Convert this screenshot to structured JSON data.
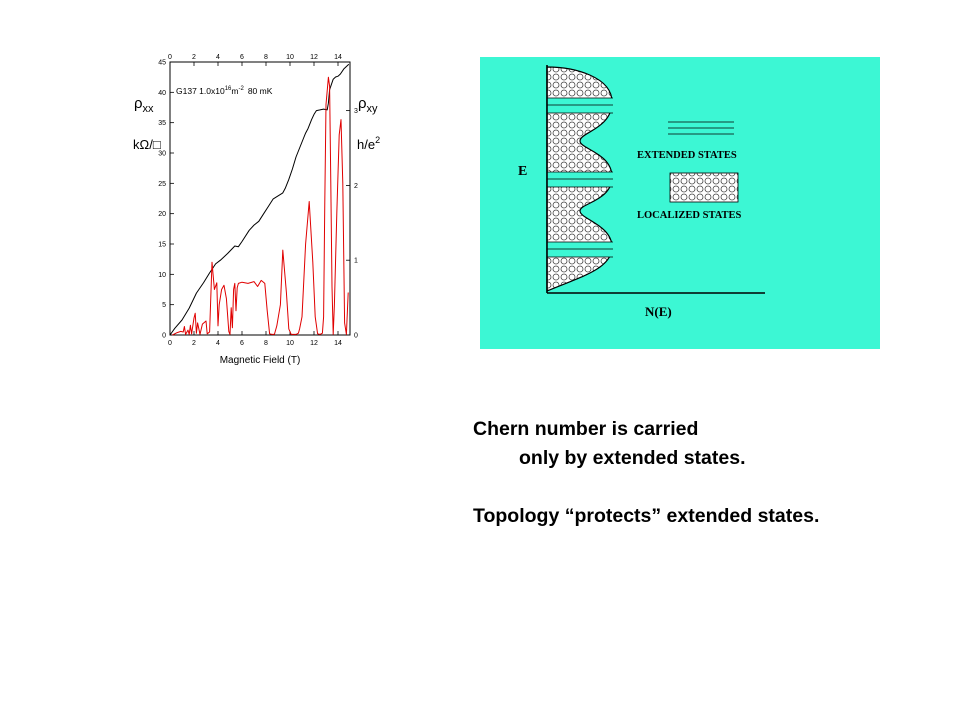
{
  "chart_data": {
    "type": "line",
    "title": "G137  1.0x10",
    "title_sup": "16",
    "title_unit": "m",
    "title_unit_sup": "-2",
    "title_temp": "80 mK",
    "xlabel": "Magnetic Field  (T)",
    "left_axis_label": {
      "rho": "ρ",
      "sub": "xx",
      "unit": "kΩ/□"
    },
    "right_axis_label": {
      "rho": "ρ",
      "sub": "xy",
      "unit": "h/e",
      "unit_sup": "2"
    },
    "xlim": [
      0,
      15
    ],
    "ylim_left": [
      0,
      45
    ],
    "ylim_right": [
      0,
      3.65
    ],
    "x_ticks": [
      "0",
      "2",
      "4",
      "6",
      "8",
      "10",
      "12",
      "14"
    ],
    "y_left_ticks": [
      "0",
      "5",
      "10",
      "15",
      "20",
      "25",
      "30",
      "35",
      "40",
      "45"
    ],
    "y_right_ticks": [
      "0",
      "1",
      "2",
      "3"
    ],
    "series": [
      {
        "color": "#000000",
        "axis": "right",
        "x": [
          0,
          0.4,
          1.0,
          1.6,
          2.2,
          2.8,
          3.3,
          3.8,
          4.2,
          4.8,
          5.4,
          5.7,
          6.0,
          6.6,
          7.0,
          7.4,
          7.8,
          8.2,
          8.6,
          9.0,
          9.2,
          9.4,
          9.6,
          9.9,
          10.2,
          10.5,
          10.8,
          11.1,
          11.3,
          11.5,
          11.8,
          12.0,
          12.2,
          12.5,
          12.8,
          13.1,
          13.2,
          13.3,
          13.6,
          13.8,
          14.0,
          14.2,
          14.5,
          14.9
        ],
        "y": [
          0,
          0.09,
          0.2,
          0.36,
          0.56,
          0.7,
          0.83,
          0.95,
          1.0,
          1.09,
          1.19,
          1.18,
          1.25,
          1.4,
          1.47,
          1.52,
          1.62,
          1.72,
          1.82,
          1.86,
          1.88,
          1.9,
          1.96,
          2.08,
          2.22,
          2.38,
          2.5,
          2.62,
          2.7,
          2.76,
          2.88,
          2.95,
          3.0,
          3.01,
          3.02,
          3.01,
          3.1,
          3.28,
          3.42,
          3.45,
          3.46,
          3.49,
          3.56,
          3.62
        ]
      },
      {
        "color": "#e00000",
        "axis": "left",
        "x": [
          0.2,
          0.6,
          0.9,
          1.1,
          1.2,
          1.3,
          1.5,
          1.6,
          1.7,
          1.8,
          2.0,
          2.1,
          2.2,
          2.3,
          2.5,
          2.7,
          3.0,
          3.1,
          3.3,
          3.5,
          3.7,
          3.9,
          4.0,
          4.1,
          4.3,
          4.5,
          4.7,
          4.9,
          5.0,
          5.1,
          5.2,
          5.3,
          5.4,
          5.5,
          5.6,
          5.7,
          6.0,
          6.5,
          7.0,
          7.3,
          7.6,
          7.9,
          8.1,
          8.3,
          8.5,
          8.7,
          8.9,
          9.2,
          9.4,
          9.7,
          9.9,
          10.1,
          10.3,
          10.5,
          10.7,
          10.8,
          11.0,
          11.3,
          11.6,
          11.9,
          12.1,
          12.3,
          12.5,
          12.7,
          12.8,
          12.9,
          13.0,
          13.2,
          13.3,
          13.4,
          13.5,
          13.6,
          13.7,
          13.9,
          14.1,
          14.25,
          14.4,
          14.55,
          14.7,
          14.85
        ],
        "y": [
          0,
          0.4,
          0.6,
          0.5,
          1.4,
          0.1,
          0.8,
          0.1,
          1.6,
          0.2,
          2.8,
          3.6,
          0.3,
          2.0,
          0.1,
          1.8,
          2.3,
          0.2,
          0.5,
          12.0,
          7.5,
          8.6,
          1.5,
          5.0,
          7.5,
          8.2,
          6.0,
          0.6,
          0.1,
          4.5,
          1.2,
          7.5,
          8.5,
          4.0,
          7.8,
          8.5,
          8.7,
          8.5,
          8.8,
          8.0,
          9.0,
          8.5,
          4.0,
          0.2,
          0.1,
          0.1,
          1.5,
          5.0,
          14.0,
          7.0,
          1.0,
          0.1,
          0.1,
          0.1,
          0.3,
          1.0,
          3.0,
          15.0,
          22.0,
          12.0,
          3.0,
          0.2,
          0.1,
          0.3,
          3.0,
          22.0,
          38.0,
          42.5,
          41.0,
          25.0,
          8.0,
          0.1,
          5.0,
          20.0,
          33.0,
          35.5,
          25.0,
          2.0,
          0.1,
          7.0
        ]
      }
    ]
  },
  "dos_diagram": {
    "energy_label": "E",
    "dos_label": "N(E)",
    "legend_extended": "EXTENDED STATES",
    "legend_localized": "LOCALIZED STATES",
    "background_color": "#3cf7d4"
  },
  "caption": {
    "line1": "Chern number is carried",
    "line2": "only by extended states.",
    "line3": "Topology “protects” extended states."
  }
}
